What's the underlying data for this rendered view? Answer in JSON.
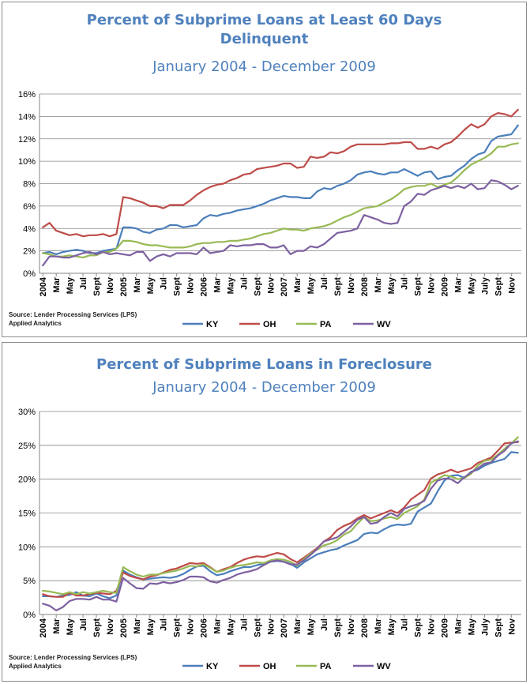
{
  "colors": {
    "KY": "#4a7ebb",
    "OH": "#be4b48",
    "PA": "#98b954",
    "WV": "#7d60a0",
    "title": "#4f81bd",
    "grid": "#878787"
  },
  "chart_data": [
    {
      "type": "line",
      "title_line1": "Percent of Subprime Loans at Least 60 Days",
      "title_line2": "Delinquent",
      "subtitle": "January 2004 - December 2009",
      "source_line1": "Source: Lender Processing Services (LPS)",
      "source_line2": "Applied Analytics",
      "ylim": [
        0,
        16
      ],
      "yticks": [
        0,
        2,
        4,
        6,
        8,
        10,
        12,
        14,
        16
      ],
      "ytick_labels": [
        "0%",
        "2%",
        "4%",
        "6%",
        "8%",
        "10%",
        "12%",
        "14%",
        "16%"
      ],
      "xtick_labels": [
        "2004",
        "Mar",
        "May",
        "Jul",
        "Sept",
        "Nov",
        "2005",
        "Mar",
        "May",
        "Jul",
        "Sept",
        "Nov",
        "2006",
        "Mar",
        "May",
        "Jul",
        "Sept",
        "Nov",
        "2007",
        "Mar",
        "May",
        "Jul",
        "Sept",
        "Nov",
        "2008",
        "Mar",
        "May",
        "Jul",
        "Sept",
        "Nov",
        "2009",
        "Mar",
        "May",
        "July",
        "Sept",
        "Nov"
      ],
      "grid": true,
      "legend_position": "bottom",
      "series": [
        {
          "name": "KY",
          "values": [
            1.8,
            1.9,
            1.7,
            1.9,
            2.0,
            2.1,
            2.0,
            1.8,
            1.8,
            2.0,
            2.1,
            2.2,
            4.1,
            4.1,
            4.0,
            3.7,
            3.6,
            3.9,
            4.0,
            4.3,
            4.3,
            4.1,
            4.2,
            4.3,
            4.9,
            5.2,
            5.1,
            5.3,
            5.4,
            5.6,
            5.7,
            5.8,
            6.0,
            6.2,
            6.5,
            6.7,
            6.9,
            6.8,
            6.8,
            6.7,
            6.7,
            7.3,
            7.6,
            7.5,
            7.8,
            8.0,
            8.3,
            8.8,
            9.0,
            9.1,
            8.9,
            8.8,
            9.0,
            9.0,
            9.3,
            9.0,
            8.7,
            9.0,
            9.1,
            8.4,
            8.6,
            8.7,
            9.2,
            9.6,
            10.2,
            10.6,
            10.8,
            11.8,
            12.2,
            12.3,
            12.4,
            13.2
          ]
        },
        {
          "name": "OH",
          "values": [
            4.1,
            4.5,
            3.8,
            3.6,
            3.4,
            3.5,
            3.3,
            3.4,
            3.4,
            3.5,
            3.3,
            3.5,
            6.8,
            6.7,
            6.5,
            6.3,
            6.0,
            6.0,
            5.8,
            6.1,
            6.1,
            6.1,
            6.5,
            7.0,
            7.4,
            7.7,
            7.9,
            8.0,
            8.3,
            8.5,
            8.8,
            8.9,
            9.3,
            9.4,
            9.5,
            9.6,
            9.8,
            9.8,
            9.4,
            9.5,
            10.4,
            10.3,
            10.4,
            10.8,
            10.7,
            10.9,
            11.3,
            11.5,
            11.5,
            11.5,
            11.5,
            11.5,
            11.6,
            11.6,
            11.7,
            11.7,
            11.1,
            11.1,
            11.3,
            11.1,
            11.5,
            11.7,
            12.2,
            12.8,
            13.3,
            13.0,
            13.3,
            14.0,
            14.3,
            14.2,
            14.0,
            14.6
          ]
        },
        {
          "name": "PA",
          "values": [
            1.8,
            1.7,
            1.5,
            1.5,
            1.6,
            1.5,
            1.4,
            1.6,
            1.6,
            1.9,
            1.9,
            2.2,
            2.9,
            2.9,
            2.8,
            2.6,
            2.5,
            2.5,
            2.4,
            2.3,
            2.3,
            2.3,
            2.4,
            2.6,
            2.7,
            2.7,
            2.8,
            2.8,
            2.9,
            2.9,
            3.0,
            3.1,
            3.3,
            3.5,
            3.6,
            3.8,
            4.0,
            3.9,
            3.9,
            3.8,
            4.0,
            4.1,
            4.2,
            4.4,
            4.7,
            5.0,
            5.2,
            5.5,
            5.8,
            5.9,
            6.0,
            6.3,
            6.6,
            7.0,
            7.5,
            7.7,
            7.8,
            7.8,
            8.0,
            7.7,
            7.9,
            8.1,
            8.6,
            9.2,
            9.7,
            10.0,
            10.3,
            10.7,
            11.3,
            11.3,
            11.5,
            11.6
          ]
        },
        {
          "name": "WV",
          "values": [
            0.7,
            1.5,
            1.5,
            1.4,
            1.4,
            1.6,
            1.8,
            1.9,
            1.7,
            1.9,
            1.7,
            1.8,
            1.7,
            1.6,
            1.9,
            1.9,
            1.1,
            1.5,
            1.7,
            1.5,
            1.8,
            1.8,
            1.8,
            1.7,
            2.3,
            1.8,
            1.9,
            2.0,
            2.5,
            2.4,
            2.5,
            2.5,
            2.6,
            2.6,
            2.3,
            2.3,
            2.5,
            1.7,
            2.0,
            2.0,
            2.4,
            2.3,
            2.6,
            3.1,
            3.6,
            3.7,
            3.8,
            4.0,
            5.2,
            5.0,
            4.8,
            4.5,
            4.4,
            4.5,
            6.0,
            6.4,
            7.1,
            7.0,
            7.4,
            7.6,
            7.8,
            7.6,
            7.8,
            7.6,
            8.0,
            7.5,
            7.6,
            8.3,
            8.2,
            7.9,
            7.5,
            7.8
          ]
        }
      ]
    },
    {
      "type": "line",
      "title_line1": "Percent of Subprime Loans in Foreclosure",
      "subtitle": "January 2004 - December 2009",
      "source_line1": "Source: Lender Processing Services (LPS)",
      "source_line2": "Applied Analytics",
      "ylim": [
        0,
        30
      ],
      "yticks": [
        0,
        5,
        10,
        15,
        20,
        25,
        30
      ],
      "ytick_labels": [
        "0%",
        "5%",
        "10%",
        "15%",
        "20%",
        "25%",
        "30%"
      ],
      "xtick_labels": [
        "2004",
        "Mar",
        "May",
        "Jul",
        "Sept",
        "Nov",
        "2005",
        "Mar",
        "May",
        "Jul",
        "Sept",
        "Nov",
        "2006",
        "Mar",
        "May",
        "Jul",
        "Sept",
        "Nov",
        "2007",
        "Mar",
        "May",
        "Jul",
        "Sept",
        "Nov",
        "2008",
        "Mar",
        "May",
        "Jul",
        "Sept",
        "Nov",
        "2009",
        "Mar",
        "May",
        "July",
        "Sept",
        "Nov"
      ],
      "grid": true,
      "legend_position": "bottom",
      "series": [
        {
          "name": "KY",
          "values": [
            2.7,
            2.7,
            2.6,
            2.8,
            2.9,
            3.3,
            2.8,
            2.7,
            3.1,
            2.7,
            2.4,
            2.8,
            6.5,
            5.9,
            5.5,
            5.2,
            5.3,
            5.4,
            5.5,
            5.4,
            5.6,
            6.0,
            6.6,
            7.1,
            7.2,
            6.4,
            5.8,
            6.0,
            6.4,
            6.7,
            7.0,
            7.0,
            7.3,
            7.5,
            7.8,
            7.9,
            7.8,
            7.5,
            6.9,
            7.7,
            8.3,
            8.9,
            9.2,
            9.5,
            9.7,
            10.2,
            10.6,
            11.0,
            11.9,
            12.1,
            12.0,
            12.6,
            13.1,
            13.3,
            13.2,
            13.4,
            15.2,
            15.8,
            16.4,
            18.2,
            19.8,
            20.5,
            20.6,
            20.2,
            21.1,
            21.4,
            22.0,
            22.4,
            22.7,
            23.0,
            24.0,
            23.9
          ]
        },
        {
          "name": "OH",
          "values": [
            3.0,
            2.7,
            2.6,
            2.6,
            3.2,
            2.8,
            2.8,
            3.0,
            3.2,
            3.1,
            3.0,
            3.5,
            6.2,
            5.7,
            5.4,
            5.2,
            5.6,
            5.8,
            6.2,
            6.6,
            6.8,
            7.2,
            7.6,
            7.5,
            7.6,
            7.0,
            6.3,
            6.7,
            7.0,
            7.6,
            8.1,
            8.4,
            8.6,
            8.5,
            8.8,
            9.1,
            8.9,
            8.2,
            7.7,
            8.4,
            9.1,
            9.8,
            10.8,
            11.4,
            12.5,
            13.1,
            13.5,
            14.2,
            14.7,
            14.2,
            14.6,
            15.0,
            15.4,
            15.0,
            15.8,
            17.0,
            17.7,
            18.4,
            20.1,
            20.7,
            21.0,
            21.4,
            21.0,
            21.3,
            21.6,
            22.4,
            22.8,
            23.2,
            24.2,
            25.3,
            25.4,
            25.5
          ]
        },
        {
          "name": "PA",
          "values": [
            3.5,
            3.4,
            3.2,
            3.0,
            3.3,
            3.0,
            3.3,
            3.1,
            3.3,
            3.5,
            3.3,
            3.2,
            7.0,
            6.4,
            5.9,
            5.6,
            5.9,
            5.9,
            6.1,
            6.3,
            6.5,
            6.8,
            7.2,
            7.1,
            7.4,
            6.9,
            6.3,
            6.5,
            6.9,
            7.2,
            7.3,
            7.5,
            7.7,
            7.6,
            8.0,
            8.2,
            8.1,
            7.8,
            7.2,
            8.2,
            9.0,
            9.6,
            10.2,
            10.5,
            11.0,
            11.8,
            12.3,
            13.4,
            14.4,
            13.8,
            13.9,
            14.2,
            14.4,
            14.1,
            15.0,
            15.5,
            16.0,
            17.0,
            19.5,
            20.0,
            20.6,
            20.4,
            20.0,
            20.2,
            20.8,
            22.0,
            22.7,
            22.9,
            23.6,
            24.5,
            25.3,
            26.2
          ]
        },
        {
          "name": "WV",
          "values": [
            1.6,
            1.3,
            0.6,
            1.1,
            2.0,
            2.3,
            2.3,
            2.2,
            2.6,
            2.2,
            2.2,
            1.9,
            5.4,
            4.6,
            3.9,
            3.8,
            4.6,
            4.5,
            4.8,
            4.6,
            4.8,
            5.1,
            5.6,
            5.6,
            5.5,
            4.9,
            4.7,
            5.1,
            5.4,
            5.9,
            6.2,
            6.4,
            6.7,
            7.3,
            7.8,
            8.0,
            7.8,
            7.4,
            7.4,
            8.0,
            8.8,
            9.7,
            10.8,
            11.1,
            11.4,
            12.2,
            13.0,
            14.0,
            14.4,
            13.4,
            13.6,
            14.4,
            15.0,
            14.5,
            15.6,
            16.0,
            16.3,
            16.8,
            18.6,
            19.8,
            20.1,
            20.0,
            19.4,
            20.3,
            21.0,
            21.6,
            22.3,
            22.5,
            23.5,
            24.2,
            25.3,
            25.6
          ]
        }
      ]
    }
  ]
}
